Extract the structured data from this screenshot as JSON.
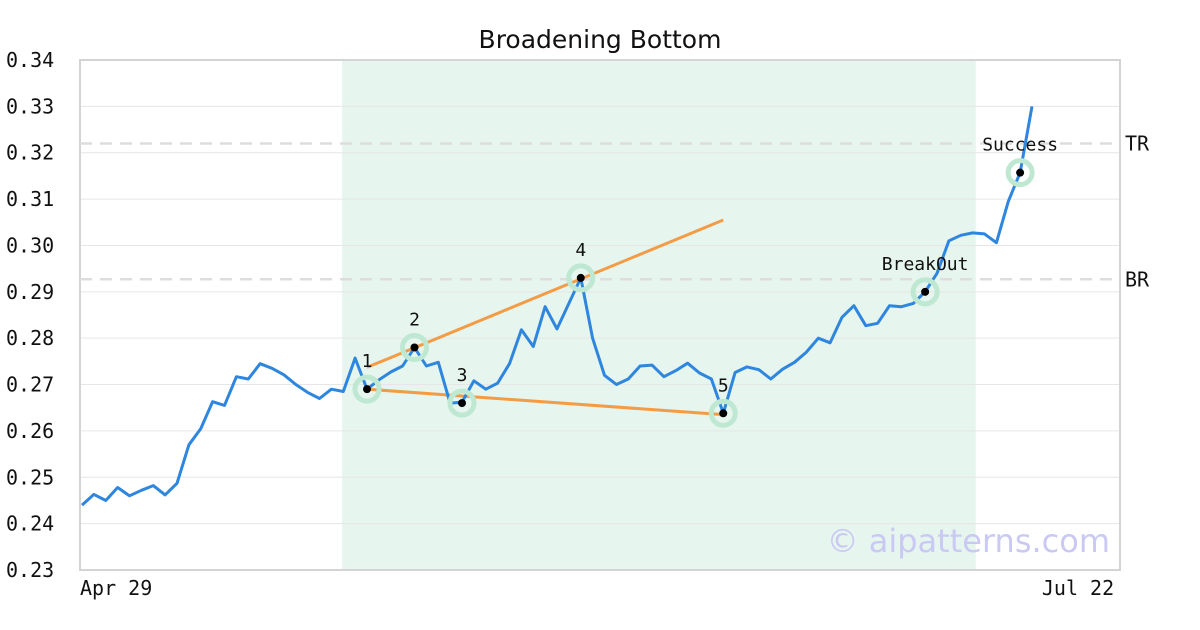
{
  "chart_data": {
    "type": "line",
    "title": "Broadening Bottom",
    "watermark": "© aipatterns.com",
    "ylim": [
      0.23,
      0.34
    ],
    "yticks": [
      "0.23",
      "0.24",
      "0.25",
      "0.26",
      "0.27",
      "0.28",
      "0.29",
      "0.30",
      "0.31",
      "0.32",
      "0.33",
      "0.34"
    ],
    "xlabels": [
      {
        "label": "Apr 29",
        "index": 0
      },
      {
        "label": "Jul 22",
        "index": 79
      }
    ],
    "grid": true,
    "colors": {
      "price": "#2e86de",
      "trend": "#f39c45",
      "pivot": "#bfe8d2",
      "highlight": "#e6f5ee",
      "refline": "#dddddd",
      "grid": "#e6e6e6"
    },
    "highlight_range": [
      23,
      74
    ],
    "series": [
      {
        "values": [
          0.244,
          0.2463,
          0.245,
          0.2478,
          0.246,
          0.2472,
          0.2482,
          0.2462,
          0.2487,
          0.257,
          0.2605,
          0.2663,
          0.2655,
          0.2717,
          0.2712,
          0.2745,
          0.2735,
          0.2721,
          0.27,
          0.2683,
          0.267,
          0.269,
          0.2685,
          0.2757,
          0.269,
          0.271,
          0.2727,
          0.274,
          0.278,
          0.274,
          0.2748,
          0.266,
          0.2662,
          0.2708,
          0.269,
          0.2703,
          0.2745,
          0.2818,
          0.2782,
          0.2868,
          0.282,
          0.2875,
          0.293,
          0.28,
          0.272,
          0.27,
          0.2712,
          0.274,
          0.2742,
          0.2717,
          0.273,
          0.2746,
          0.2725,
          0.2712,
          0.2638,
          0.2726,
          0.2738,
          0.2732,
          0.2712,
          0.2733,
          0.2748,
          0.277,
          0.28,
          0.279,
          0.2845,
          0.287,
          0.2827,
          0.2832,
          0.287,
          0.2868,
          0.2875,
          0.29,
          0.294,
          0.301,
          0.3022,
          0.3027,
          0.3025,
          0.3006,
          0.3095,
          0.3157,
          0.33
        ]
      }
    ],
    "points": [
      {
        "label": "1",
        "index": 24,
        "value": 0.269
      },
      {
        "label": "2",
        "index": 28,
        "value": 0.278
      },
      {
        "label": "3",
        "index": 32,
        "value": 0.266
      },
      {
        "label": "4",
        "index": 42,
        "value": 0.293
      },
      {
        "label": "5",
        "index": 54,
        "value": 0.2638
      },
      {
        "label": "BreakOut",
        "index": 71,
        "value": 0.29
      },
      {
        "label": "Success",
        "index": 79,
        "value": 0.3157
      }
    ],
    "trendlines": [
      {
        "from": {
          "index": 24,
          "value": 0.2737
        },
        "to": {
          "index": 54,
          "value": 0.3055
        }
      },
      {
        "from": {
          "index": 24,
          "value": 0.269
        },
        "to": {
          "index": 54,
          "value": 0.2635
        }
      }
    ],
    "reference_lines": [
      {
        "label": "TR",
        "value": 0.322
      },
      {
        "label": "BR",
        "value": 0.2927
      }
    ]
  }
}
